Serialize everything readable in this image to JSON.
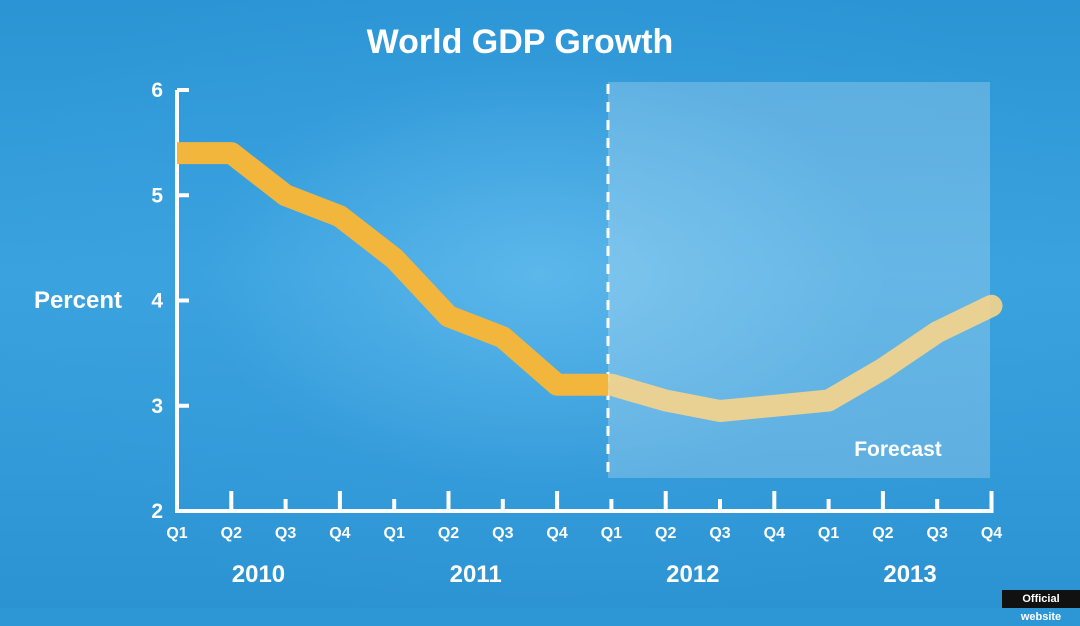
{
  "chart_data": {
    "type": "line",
    "title": "World GDP Growth",
    "ylabel": "Percent",
    "ylim": [
      2,
      6
    ],
    "yticks": [
      "2",
      "3",
      "4",
      "5",
      "6"
    ],
    "categories": [
      "Q1",
      "Q2",
      "Q3",
      "Q4",
      "Q1",
      "Q2",
      "Q3",
      "Q4",
      "Q1",
      "Q2",
      "Q3",
      "Q4",
      "Q1",
      "Q2",
      "Q3",
      "Q4"
    ],
    "years": [
      "2010",
      "2011",
      "2012",
      "2013"
    ],
    "series": [
      {
        "values": [
          5.4,
          5.4,
          5.0,
          4.8,
          4.4,
          3.85,
          3.65,
          3.2,
          3.2,
          3.05,
          2.95,
          3.0,
          3.05,
          3.35,
          3.7,
          3.95
        ]
      }
    ],
    "forecast_start_index": 8,
    "annotation": "Forecast",
    "line_color": "#f2b63d",
    "grid": false
  },
  "badge": "Official website"
}
